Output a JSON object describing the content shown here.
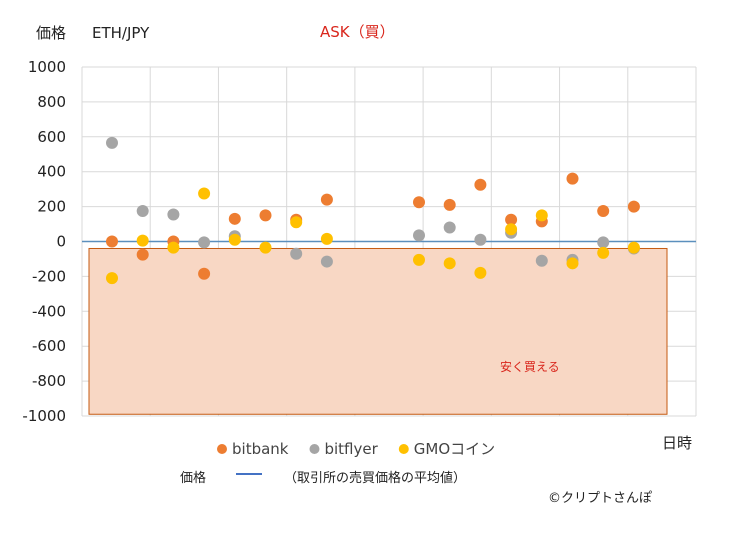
{
  "chart_data": {
    "type": "scatter",
    "title": "ASK（買）",
    "ylabel": "価格",
    "pair_label": "ETH/JPY",
    "xlabel": "日時",
    "ylim": [
      -1000,
      1000
    ],
    "yticks": [
      1000,
      800,
      600,
      400,
      200,
      0,
      -200,
      -400,
      -600,
      -800,
      -1000
    ],
    "x_slots": 18,
    "grid": true,
    "legend_position": "bottom",
    "series": [
      {
        "name": "bitbank",
        "color": "#ed7d31",
        "points": [
          [
            1,
            0
          ],
          [
            2,
            -75
          ],
          [
            3,
            0
          ],
          [
            4,
            -185
          ],
          [
            5,
            130
          ],
          [
            6,
            150
          ],
          [
            7,
            125
          ],
          [
            8,
            240
          ],
          [
            11,
            225
          ],
          [
            12,
            210
          ],
          [
            13,
            325
          ],
          [
            14,
            125
          ],
          [
            15,
            115
          ],
          [
            16,
            360
          ],
          [
            17,
            175
          ],
          [
            18,
            200
          ]
        ]
      },
      {
        "name": "bitflyer",
        "color": "#a5a5a5",
        "points": [
          [
            1,
            565
          ],
          [
            2,
            175
          ],
          [
            3,
            155
          ],
          [
            4,
            -5
          ],
          [
            5,
            30
          ],
          [
            7,
            -70
          ],
          [
            8,
            -115
          ],
          [
            11,
            35
          ],
          [
            12,
            80
          ],
          [
            13,
            10
          ],
          [
            14,
            50
          ],
          [
            15,
            -110
          ],
          [
            16,
            -105
          ],
          [
            17,
            -5
          ],
          [
            18,
            -40
          ]
        ]
      },
      {
        "name": "GMOコイン",
        "color": "#ffc000",
        "points": [
          [
            1,
            -210
          ],
          [
            2,
            5
          ],
          [
            3,
            -35
          ],
          [
            4,
            275
          ],
          [
            5,
            10
          ],
          [
            6,
            -35
          ],
          [
            7,
            110
          ],
          [
            8,
            15
          ],
          [
            11,
            -105
          ],
          [
            12,
            -125
          ],
          [
            13,
            -180
          ],
          [
            14,
            70
          ],
          [
            15,
            150
          ],
          [
            16,
            -125
          ],
          [
            17,
            -65
          ],
          [
            18,
            -35
          ]
        ]
      }
    ],
    "reference_line": {
      "value": 0,
      "color": "#5b8fbd"
    },
    "region": {
      "label": "安く買える",
      "y_from": -40,
      "y_to": -990,
      "fill": "#f8d7c4",
      "stroke": "#c55a11"
    }
  },
  "legend2": {
    "label": "価格",
    "line_color": "#4472c4",
    "text": "（取引所の売買価格の平均値）"
  },
  "credit": "©クリプトさんぽ"
}
